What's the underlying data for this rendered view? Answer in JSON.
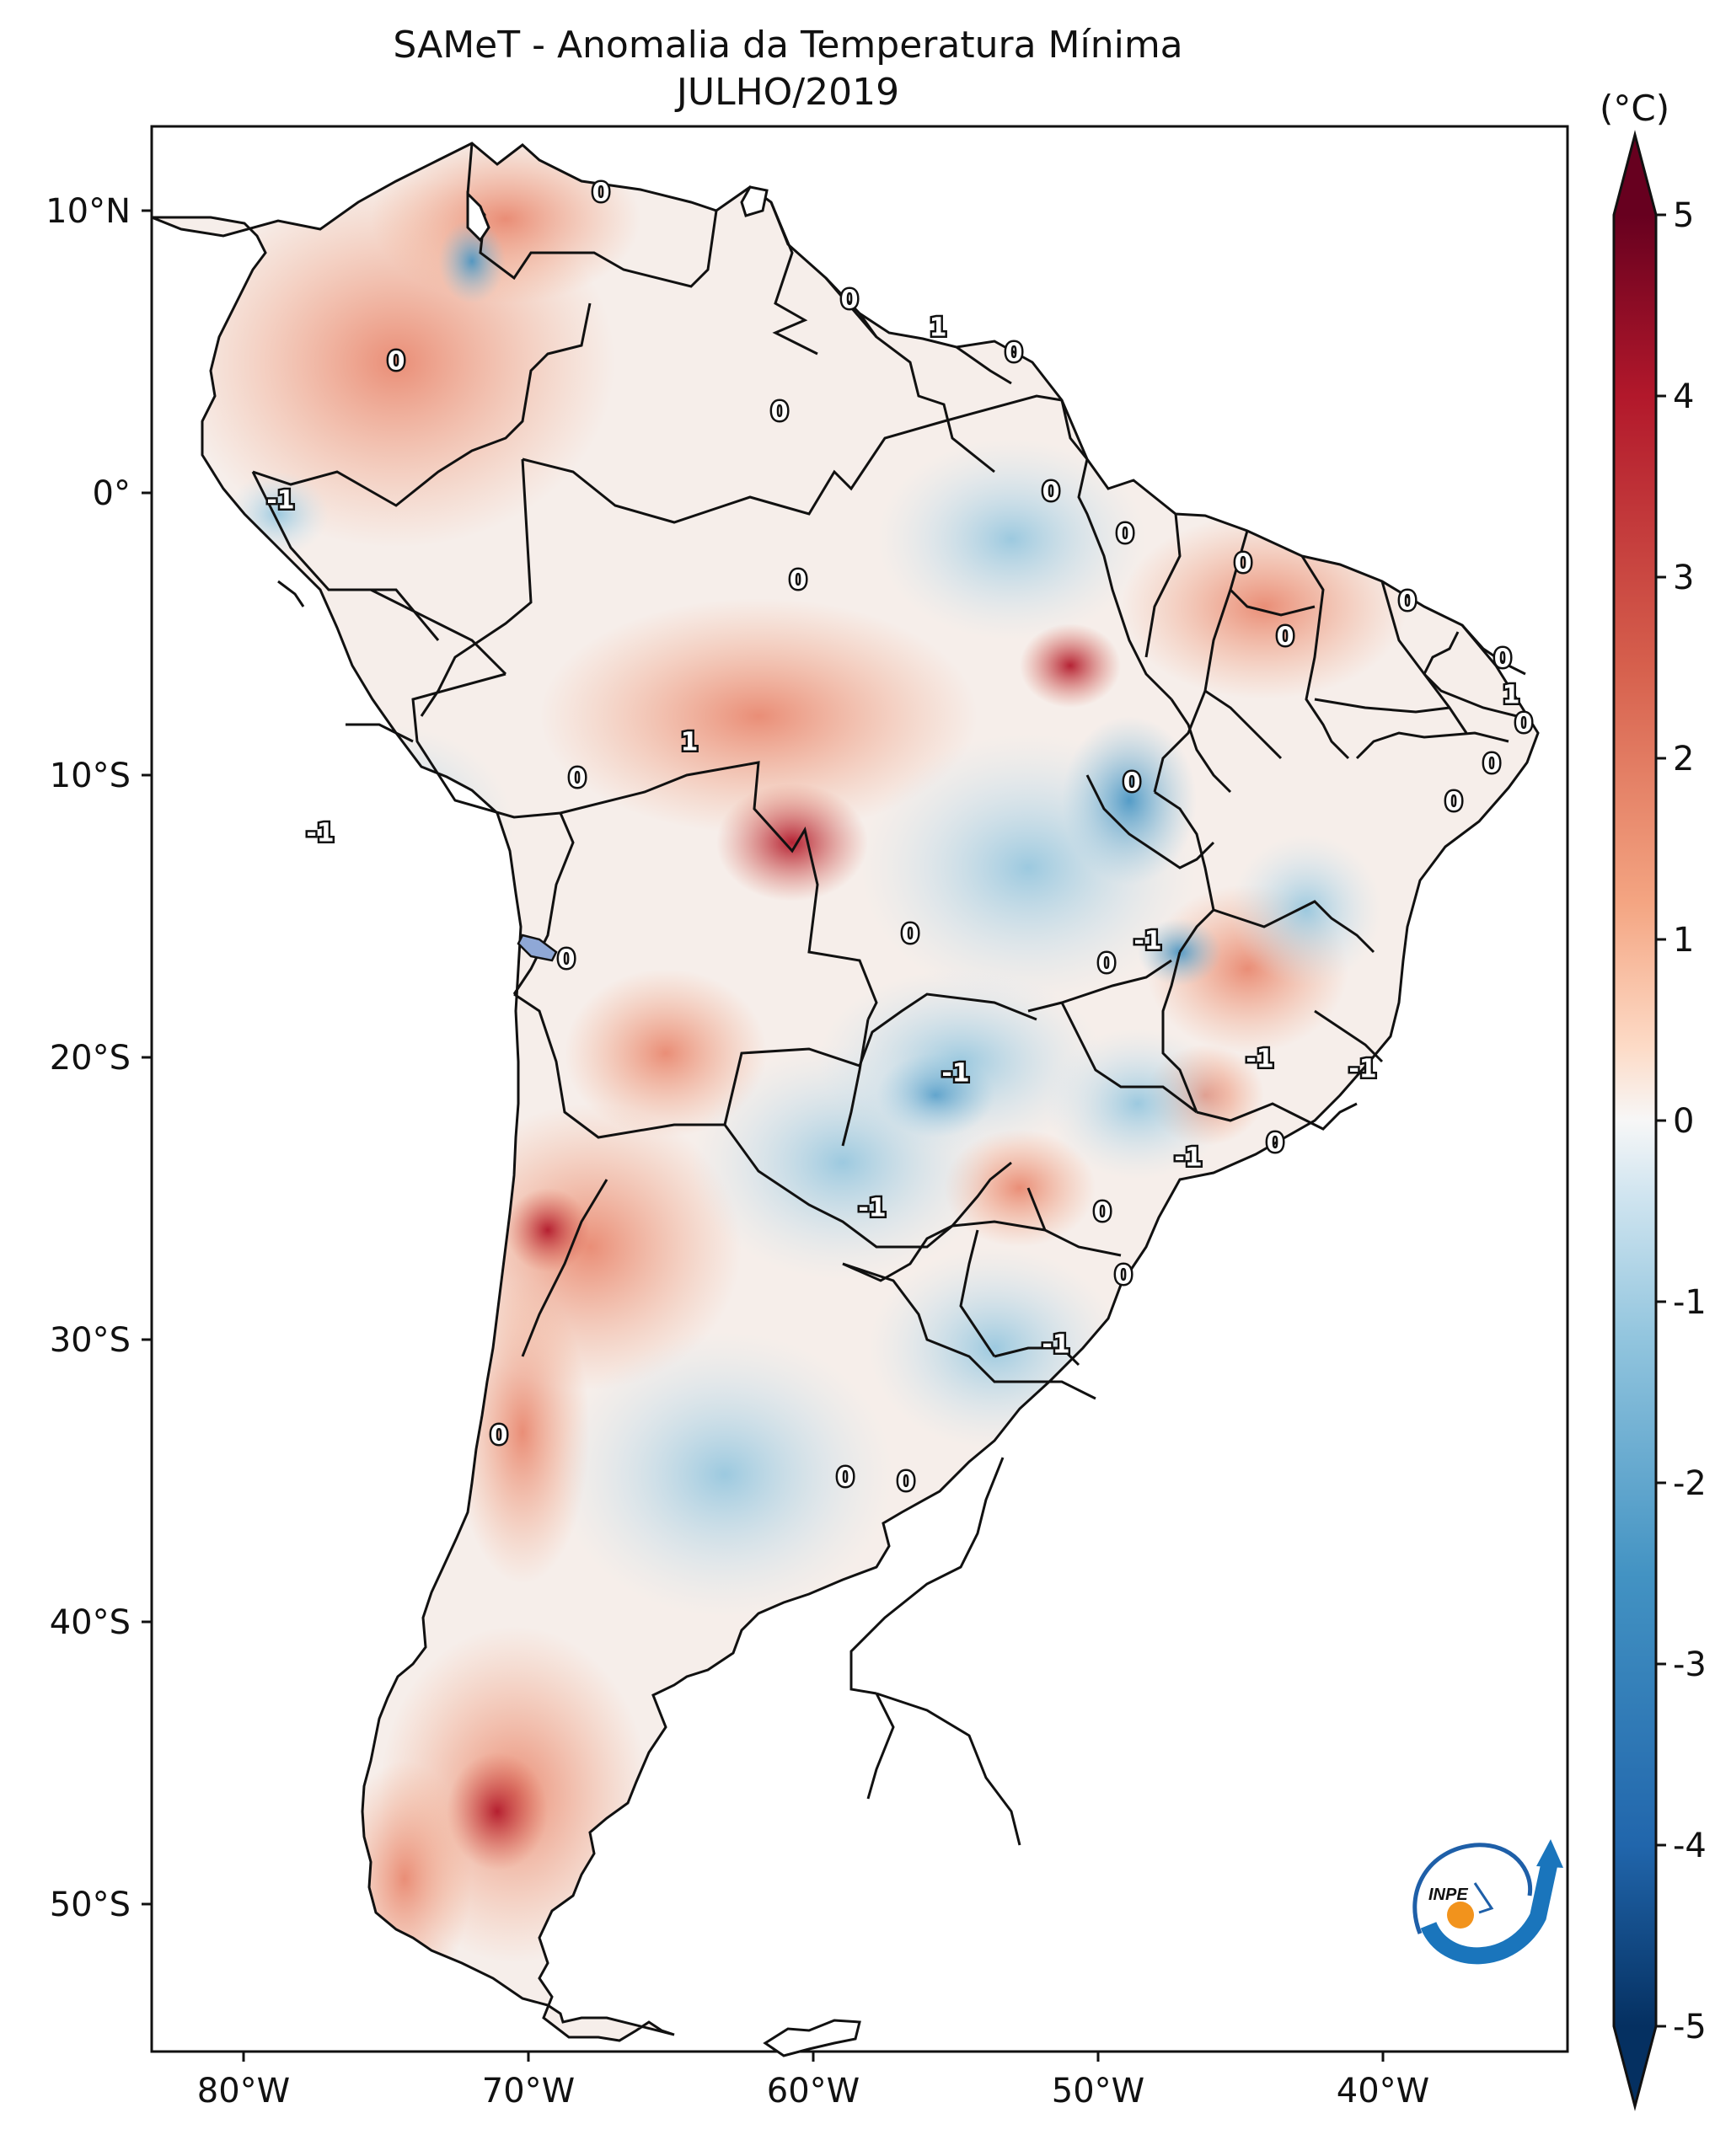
{
  "title": "SAMeT - Anomalia da Temperatura Mínima",
  "subtitle": "JULHO/2019",
  "colorbar": {
    "unit": "(°C)",
    "min": -5,
    "max": 5,
    "ticks": [
      "5",
      "4",
      "3",
      "2",
      "1",
      "0",
      "-1",
      "-2",
      "-3",
      "-4",
      "-5"
    ],
    "colors": {
      "cold": "#08306b",
      "cool": "#4393c3",
      "neutral": "#f7f7f7",
      "warm": "#f4a582",
      "hot": "#67001f"
    }
  },
  "axes": {
    "lon_ticks": [
      "80°W",
      "70°W",
      "60°W",
      "50°W",
      "40°W"
    ],
    "lat_ticks": [
      "10°N",
      "0°",
      "10°S",
      "20°S",
      "30°S",
      "40°S",
      "50°S"
    ]
  },
  "contour_labels": [
    "0",
    "0",
    "0",
    "1",
    "0",
    "0",
    "-1",
    "0",
    "0",
    "0",
    "0",
    "0",
    "0",
    "0",
    "1",
    "0",
    "-1",
    "1",
    "0",
    "1",
    "0",
    "-1",
    "0",
    "-1",
    "0",
    "0",
    "-1",
    "-1",
    "-1",
    "0",
    "-1",
    "0",
    "0",
    "-1",
    "0",
    "0",
    "0"
  ],
  "logo": {
    "text": "INPE"
  }
}
